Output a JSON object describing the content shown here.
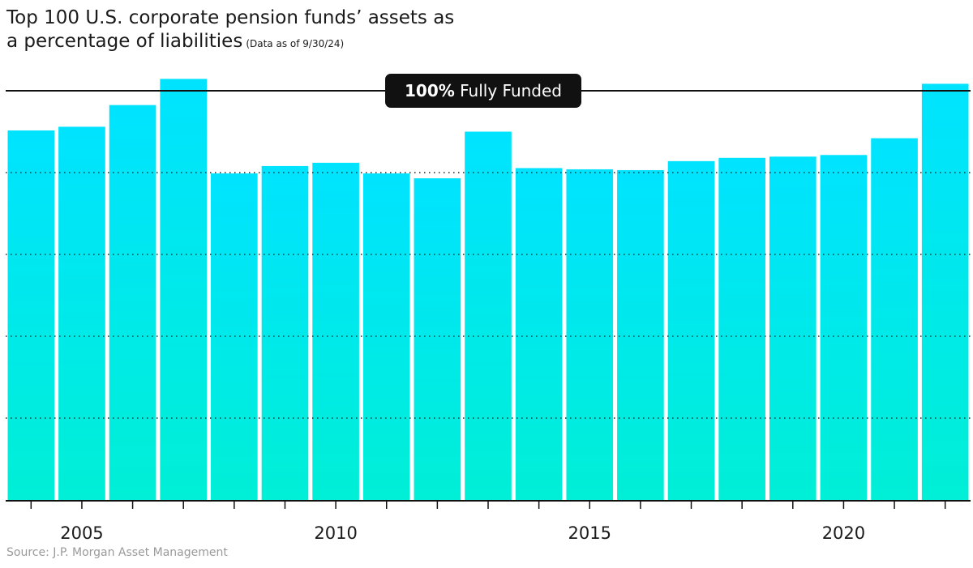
{
  "title": {
    "line1": "Top 100 U.S. corporate pension funds’ assets as",
    "line2": "a percentage of liabilities",
    "note": "(Data as of 9/30/24)"
  },
  "source": "Source: J.P. Morgan Asset Management",
  "colors": {
    "bar_top": "#00e3ff",
    "bar_bottom": "#00efd6",
    "reference_line": "#111111",
    "label_box": "#111111",
    "grid": "#222222"
  },
  "chart_data": {
    "type": "bar",
    "categories": [
      2004,
      2005,
      2006,
      2007,
      2008,
      2009,
      2010,
      2011,
      2012,
      2013,
      2014,
      2015,
      2016,
      2017,
      2018,
      2019,
      2020,
      2021,
      2022
    ],
    "values": [
      90.3,
      91.2,
      96.5,
      102.9,
      79.8,
      81.6,
      82.4,
      79.8,
      78.6,
      90.0,
      81.1,
      80.8,
      80.6,
      82.8,
      83.6,
      83.9,
      84.3,
      88.4,
      101.7
    ],
    "xlabel": "",
    "ylabel": "",
    "ylim": [
      0,
      100
    ],
    "x_ticks": [
      2005,
      2010,
      2015,
      2020
    ],
    "reference_line": {
      "value": 100,
      "label_bold": "100%",
      "label_rest": "Fully Funded"
    },
    "gridlines": [
      20,
      40,
      60,
      80
    ],
    "grid_style": "dotted",
    "legend": "none"
  }
}
